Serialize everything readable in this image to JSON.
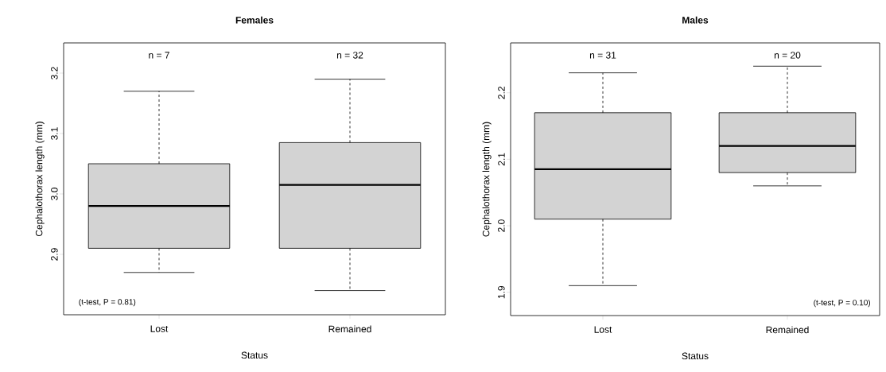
{
  "chart_data": [
    {
      "type": "box",
      "title": "Females",
      "xlabel": "Status",
      "ylabel": "Cephalothorax length (mm)",
      "categories": [
        "Lost",
        "Remained"
      ],
      "color": "#d3d3d3",
      "boxes": [
        {
          "low": 2.87,
          "q1": 2.91,
          "median": 2.98,
          "q3": 3.05,
          "high": 3.17
        },
        {
          "low": 2.84,
          "q1": 2.91,
          "median": 3.015,
          "q3": 3.085,
          "high": 3.19
        }
      ],
      "ylim": [
        2.8,
        3.25
      ],
      "yticks": [
        2.9,
        {
          "value": 3.0,
          "label": "3.0"
        },
        3.1,
        3.2
      ],
      "annotations": [
        "n = 7",
        "n = 32",
        "(t-test, P = 0.81)"
      ]
    },
    {
      "type": "box",
      "title": "Males",
      "xlabel": "Status",
      "ylabel": "Cephalothorax length (mm)",
      "categories": [
        "Lost",
        "Remained"
      ],
      "color": "#d3d3d3",
      "boxes": [
        {
          "low": 1.91,
          "q1": 2.01,
          "median": 2.085,
          "q3": 2.17,
          "high": 2.23
        },
        {
          "low": 2.06,
          "q1": 2.08,
          "median": 2.12,
          "q3": 2.17,
          "high": 2.24
        }
      ],
      "ylim": [
        1.865,
        2.275
      ],
      "yticks": [
        1.9,
        {
          "value": 2.0,
          "label": "2.0"
        },
        2.1,
        2.2
      ],
      "annotations": [
        "n = 31",
        "n = 20",
        "(t-test, P = 0.10)"
      ]
    }
  ]
}
